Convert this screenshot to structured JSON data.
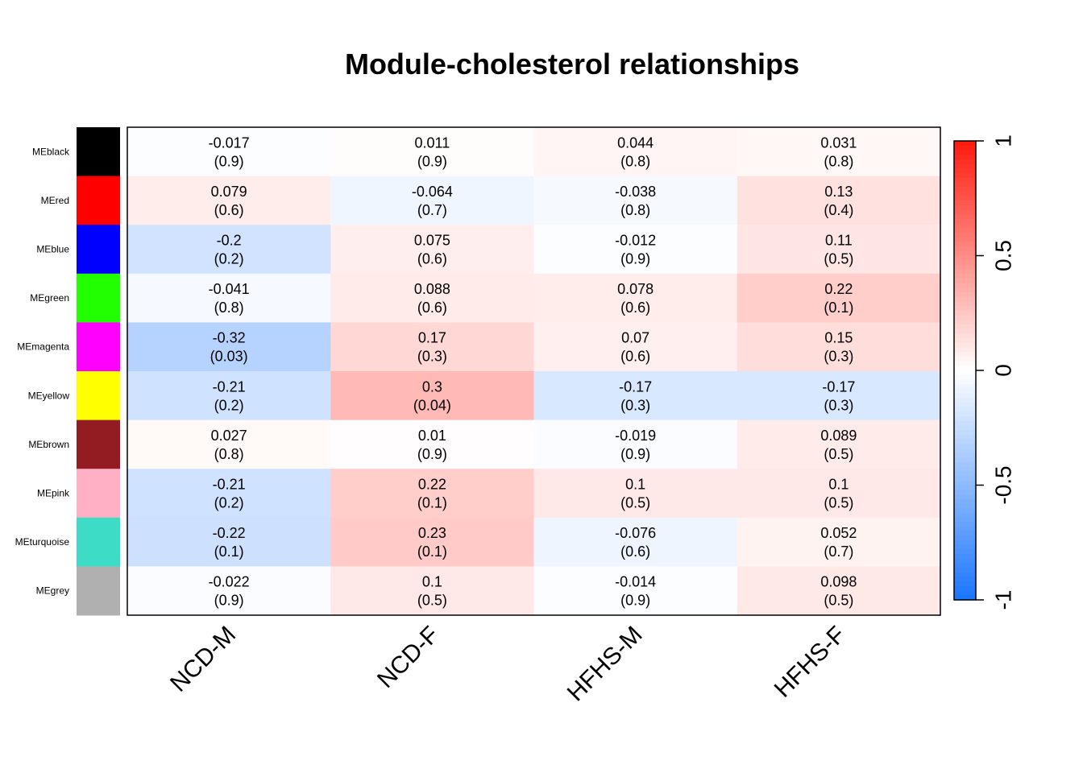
{
  "chart_data": {
    "type": "heatmap",
    "title": "Module-cholesterol relationships",
    "columns": [
      "NCD-M",
      "NCD-F",
      "HFHS-M",
      "HFHS-F"
    ],
    "rows": [
      {
        "label": "MEblack",
        "swatch": "#000000",
        "values": [
          "-0.017",
          "0.011",
          "0.044",
          "0.031"
        ],
        "pvalues": [
          "(0.9)",
          "(0.9)",
          "(0.8)",
          "(0.8)"
        ]
      },
      {
        "label": "MEred",
        "swatch": "#ff0000",
        "values": [
          "0.079",
          "-0.064",
          "-0.038",
          "0.13"
        ],
        "pvalues": [
          "(0.6)",
          "(0.7)",
          "(0.8)",
          "(0.4)"
        ]
      },
      {
        "label": "MEblue",
        "swatch": "#0000ff",
        "values": [
          "-0.2",
          "0.075",
          "-0.012",
          "0.11"
        ],
        "pvalues": [
          "(0.2)",
          "(0.6)",
          "(0.9)",
          "(0.5)"
        ]
      },
      {
        "label": "MEgreen",
        "swatch": "#22ff00",
        "values": [
          "-0.041",
          "0.088",
          "0.078",
          "0.22"
        ],
        "pvalues": [
          "(0.8)",
          "(0.6)",
          "(0.6)",
          "(0.1)"
        ]
      },
      {
        "label": "MEmagenta",
        "swatch": "#ff00ff",
        "values": [
          "-0.32",
          "0.17",
          "0.07",
          "0.15"
        ],
        "pvalues": [
          "(0.03)",
          "(0.3)",
          "(0.6)",
          "(0.3)"
        ]
      },
      {
        "label": "MEyellow",
        "swatch": "#ffff00",
        "values": [
          "-0.21",
          "0.3",
          "-0.17",
          "-0.17"
        ],
        "pvalues": [
          "(0.2)",
          "(0.04)",
          "(0.3)",
          "(0.3)"
        ]
      },
      {
        "label": "MEbrown",
        "swatch": "#921c22",
        "values": [
          "0.027",
          "0.01",
          "-0.019",
          "0.089"
        ],
        "pvalues": [
          "(0.8)",
          "(0.9)",
          "(0.9)",
          "(0.5)"
        ]
      },
      {
        "label": "MEpink",
        "swatch": "#ffb0c4",
        "values": [
          "-0.21",
          "0.22",
          "0.1",
          "0.1"
        ],
        "pvalues": [
          "(0.2)",
          "(0.1)",
          "(0.5)",
          "(0.5)"
        ]
      },
      {
        "label": "MEturquoise",
        "swatch": "#3ddcc6",
        "values": [
          "-0.22",
          "0.23",
          "-0.076",
          "0.052"
        ],
        "pvalues": [
          "(0.1)",
          "(0.1)",
          "(0.6)",
          "(0.7)"
        ]
      },
      {
        "label": "MEgrey",
        "swatch": "#b0b0b0",
        "values": [
          "-0.022",
          "0.1",
          "-0.014",
          "0.098"
        ],
        "pvalues": [
          "(0.9)",
          "(0.5)",
          "(0.9)",
          "(0.5)"
        ]
      }
    ],
    "color_scale": {
      "range": [
        -1,
        1
      ],
      "ticks": [
        "-1",
        "-0.5",
        "0",
        "0.5",
        "1"
      ],
      "low_color": "#1a75ff",
      "mid_color": "#ffffff",
      "high_color": "#ff1a0d"
    }
  }
}
